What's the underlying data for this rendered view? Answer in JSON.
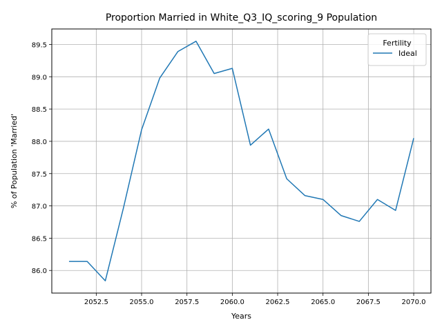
{
  "chart_data": {
    "type": "line",
    "title": "Proportion Married in White_Q3_IQ_scoring_9 Population",
    "xlabel": "Years",
    "ylabel": "% of Population 'Married'",
    "xlim": [
      2050.05,
      2070.95
    ],
    "ylim": [
      85.65,
      89.74
    ],
    "xticks": [
      2052.5,
      2055.0,
      2057.5,
      2060.0,
      2062.5,
      2065.0,
      2067.5,
      2070.0
    ],
    "xtick_labels": [
      "2052.5",
      "2055.0",
      "2057.5",
      "2060.0",
      "2062.5",
      "2065.0",
      "2067.5",
      "2070.0"
    ],
    "yticks": [
      86.0,
      86.5,
      87.0,
      87.5,
      88.0,
      88.5,
      89.0,
      89.5
    ],
    "ytick_labels": [
      "86.0",
      "86.5",
      "87.0",
      "87.5",
      "88.0",
      "88.5",
      "89.0",
      "89.5"
    ],
    "grid": true,
    "legend": {
      "title": "Fertility",
      "position": "top-right"
    },
    "series": [
      {
        "name": "Ideal",
        "color": "#1f77b4",
        "x": [
          2051,
          2052,
          2053,
          2054,
          2055,
          2056,
          2057,
          2058,
          2059,
          2060,
          2061,
          2062,
          2063,
          2064,
          2065,
          2066,
          2067,
          2068,
          2069,
          2070
        ],
        "y": [
          86.14,
          86.14,
          85.84,
          86.97,
          88.18,
          88.98,
          89.39,
          89.55,
          89.05,
          89.13,
          87.94,
          88.19,
          87.42,
          87.16,
          87.1,
          86.85,
          86.76,
          87.1,
          86.93,
          88.05
        ]
      }
    ]
  }
}
